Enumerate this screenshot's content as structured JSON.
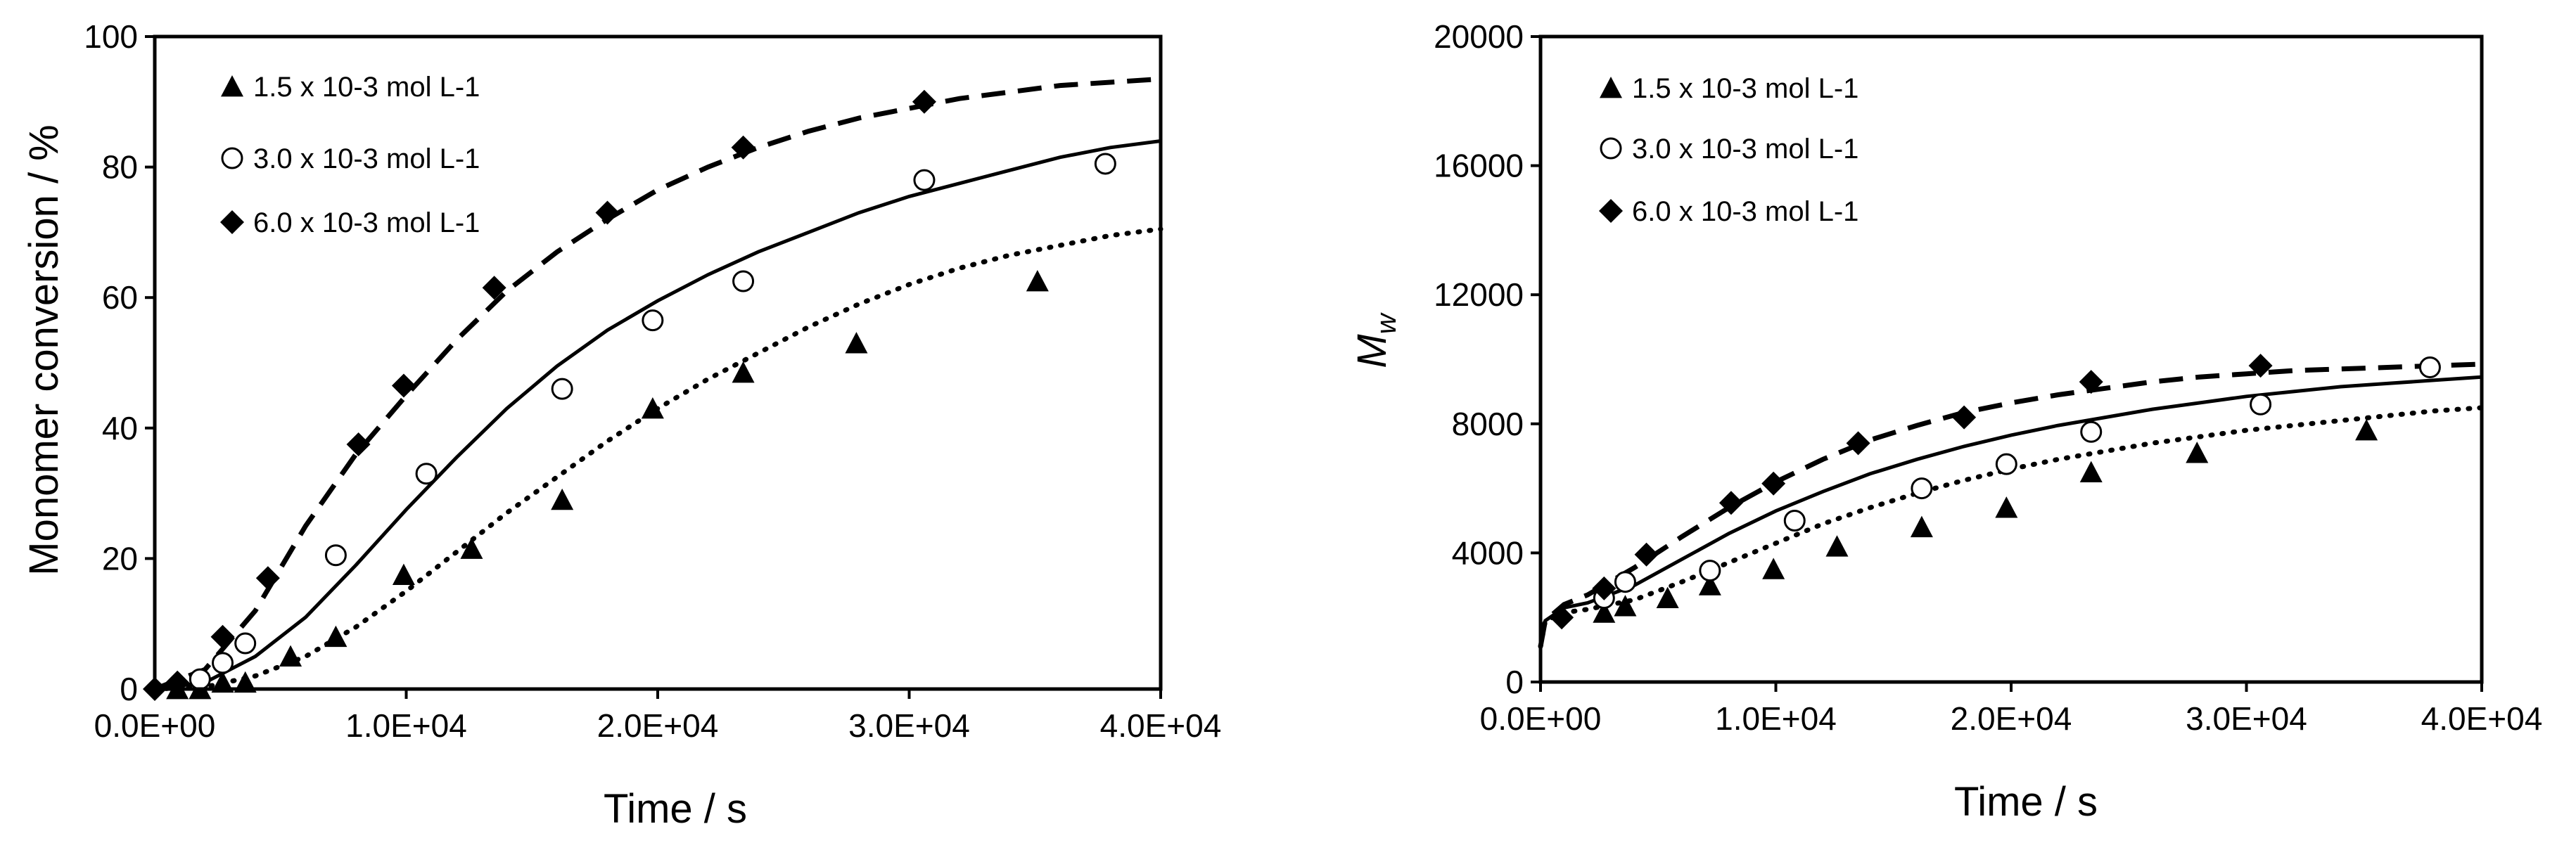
{
  "chart_data": [
    {
      "type": "scatter",
      "title": "",
      "xlabel": "Time / s",
      "ylabel": "Monomer conversion / %",
      "xlim": [
        0,
        40000
      ],
      "ylim": [
        0,
        100
      ],
      "xticks": [
        0,
        10000,
        20000,
        30000,
        40000
      ],
      "xtick_labels": [
        "0.0E+00",
        "1.0E+04",
        "2.0E+04",
        "3.0E+04",
        "4.0E+04"
      ],
      "yticks": [
        0,
        20,
        40,
        60,
        80,
        100
      ],
      "ytick_labels": [
        "0",
        "20",
        "40",
        "60",
        "80",
        "100"
      ],
      "grid": false,
      "legend_position": "top-left",
      "series": [
        {
          "name": "1.5 x 10-3 mol L-1",
          "marker": "triangle",
          "line_style": "dotted",
          "points": [
            [
              900,
              0
            ],
            [
              1800,
              0
            ],
            [
              2700,
              1
            ],
            [
              3600,
              1
            ],
            [
              5400,
              5
            ],
            [
              7200,
              8
            ],
            [
              9900,
              17.5
            ],
            [
              12600,
              21.5
            ],
            [
              16200,
              29
            ],
            [
              19800,
              43
            ],
            [
              23400,
              48.5
            ],
            [
              27900,
              53
            ],
            [
              35100,
              62.5
            ]
          ],
          "fit": [
            [
              0,
              0
            ],
            [
              2000,
              0.3
            ],
            [
              4000,
              2
            ],
            [
              6000,
              5
            ],
            [
              8000,
              9.5
            ],
            [
              10000,
              15
            ],
            [
              12000,
              21
            ],
            [
              14000,
              27
            ],
            [
              16000,
              32.5
            ],
            [
              18000,
              38
            ],
            [
              20000,
              43
            ],
            [
              22000,
              47.5
            ],
            [
              24000,
              51.5
            ],
            [
              26000,
              55.5
            ],
            [
              28000,
              59
            ],
            [
              30000,
              62
            ],
            [
              32000,
              64.5
            ],
            [
              34000,
              66.5
            ],
            [
              36000,
              68
            ],
            [
              38000,
              69.5
            ],
            [
              40000,
              70.5
            ]
          ]
        },
        {
          "name": "3.0 x 10-3 mol L-1",
          "marker": "open-circle",
          "line_style": "solid",
          "points": [
            [
              1800,
              1.5
            ],
            [
              2700,
              4
            ],
            [
              3600,
              7
            ],
            [
              7200,
              20.5
            ],
            [
              10800,
              33
            ],
            [
              16200,
              46
            ],
            [
              19800,
              56.5
            ],
            [
              23400,
              62.5
            ],
            [
              30600,
              78
            ],
            [
              37800,
              80.5
            ]
          ],
          "fit": [
            [
              0,
              0
            ],
            [
              2000,
              1
            ],
            [
              4000,
              5
            ],
            [
              6000,
              11
            ],
            [
              8000,
              19
            ],
            [
              10000,
              27.5
            ],
            [
              12000,
              35.5
            ],
            [
              14000,
              43
            ],
            [
              16000,
              49.5
            ],
            [
              18000,
              55
            ],
            [
              20000,
              59.5
            ],
            [
              22000,
              63.5
            ],
            [
              24000,
              67
            ],
            [
              26000,
              70
            ],
            [
              28000,
              73
            ],
            [
              30000,
              75.5
            ],
            [
              32000,
              77.5
            ],
            [
              34000,
              79.5
            ],
            [
              36000,
              81.5
            ],
            [
              38000,
              83
            ],
            [
              40000,
              84
            ]
          ]
        },
        {
          "name": "6.0 x 10-3 mol L-1",
          "marker": "diamond",
          "line_style": "dashed",
          "points": [
            [
              0,
              0
            ],
            [
              900,
              1
            ],
            [
              2700,
              8
            ],
            [
              4500,
              17
            ],
            [
              8100,
              37.5
            ],
            [
              9900,
              46.5
            ],
            [
              13500,
              61.5
            ],
            [
              18000,
              73
            ],
            [
              23400,
              83
            ],
            [
              30600,
              90
            ]
          ],
          "fit": [
            [
              0,
              0
            ],
            [
              2000,
              3
            ],
            [
              4000,
              12
            ],
            [
              6000,
              25
            ],
            [
              8000,
              36
            ],
            [
              10000,
              45
            ],
            [
              12000,
              53.5
            ],
            [
              14000,
              61
            ],
            [
              16000,
              67
            ],
            [
              18000,
              72
            ],
            [
              20000,
              76.5
            ],
            [
              22000,
              80
            ],
            [
              24000,
              83
            ],
            [
              26000,
              85.5
            ],
            [
              28000,
              87.5
            ],
            [
              30000,
              89
            ],
            [
              32000,
              90.5
            ],
            [
              34000,
              91.5
            ],
            [
              36000,
              92.5
            ],
            [
              38000,
              93
            ],
            [
              40000,
              93.5
            ]
          ]
        }
      ]
    },
    {
      "type": "scatter",
      "title": "",
      "xlabel": "Time / s",
      "ylabel": "Mw",
      "ylabel_main": "M",
      "ylabel_sub": "w",
      "xlim": [
        0,
        40000
      ],
      "ylim": [
        0,
        20000
      ],
      "xticks": [
        0,
        10000,
        20000,
        30000,
        40000
      ],
      "xtick_labels": [
        "0.0E+00",
        "1.0E+04",
        "2.0E+04",
        "3.0E+04",
        "4.0E+04"
      ],
      "yticks": [
        0,
        4000,
        8000,
        12000,
        16000,
        20000
      ],
      "ytick_labels": [
        "0",
        "4000",
        "8000",
        "12000",
        "16000",
        "20000"
      ],
      "grid": false,
      "legend_position": "top-left",
      "series": [
        {
          "name": "1.5 x 10-3 mol L-1",
          "marker": "triangle",
          "line_style": "dotted",
          "points": [
            [
              2700,
              2150
            ],
            [
              3600,
              2350
            ],
            [
              5400,
              2600
            ],
            [
              7200,
              3000
            ],
            [
              9900,
              3500
            ],
            [
              12600,
              4200
            ],
            [
              16200,
              4800
            ],
            [
              19800,
              5400
            ],
            [
              23400,
              6500
            ],
            [
              27900,
              7100
            ],
            [
              35100,
              7800
            ]
          ],
          "fit": [
            [
              0,
              1100
            ],
            [
              200,
              1900
            ],
            [
              1000,
              2150
            ],
            [
              2000,
              2250
            ],
            [
              4000,
              2550
            ],
            [
              6000,
              3100
            ],
            [
              8000,
              3700
            ],
            [
              10000,
              4300
            ],
            [
              12000,
              4900
            ],
            [
              14000,
              5400
            ],
            [
              16000,
              5850
            ],
            [
              18000,
              6250
            ],
            [
              20000,
              6600
            ],
            [
              22000,
              6900
            ],
            [
              24000,
              7150
            ],
            [
              26000,
              7400
            ],
            [
              28000,
              7600
            ],
            [
              30000,
              7800
            ],
            [
              32000,
              7950
            ],
            [
              34000,
              8100
            ],
            [
              36000,
              8250
            ],
            [
              38000,
              8400
            ],
            [
              40000,
              8500
            ]
          ]
        },
        {
          "name": "3.0 x 10-3 mol L-1",
          "marker": "open-circle",
          "line_style": "solid",
          "points": [
            [
              2700,
              2600
            ],
            [
              3600,
              3100
            ],
            [
              7200,
              3450
            ],
            [
              10800,
              5000
            ],
            [
              16200,
              6000
            ],
            [
              19800,
              6750
            ],
            [
              23400,
              7750
            ],
            [
              30600,
              8600
            ],
            [
              37800,
              9750
            ]
          ],
          "fit": [
            [
              0,
              1100
            ],
            [
              200,
              1900
            ],
            [
              1000,
              2300
            ],
            [
              2000,
              2450
            ],
            [
              4000,
              3000
            ],
            [
              6000,
              3800
            ],
            [
              8000,
              4600
            ],
            [
              10000,
              5300
            ],
            [
              12000,
              5900
            ],
            [
              14000,
              6450
            ],
            [
              16000,
              6900
            ],
            [
              18000,
              7300
            ],
            [
              20000,
              7650
            ],
            [
              22000,
              7950
            ],
            [
              24000,
              8200
            ],
            [
              26000,
              8450
            ],
            [
              28000,
              8650
            ],
            [
              30000,
              8850
            ],
            [
              32000,
              9000
            ],
            [
              34000,
              9150
            ],
            [
              36000,
              9250
            ],
            [
              38000,
              9350
            ],
            [
              40000,
              9450
            ]
          ]
        },
        {
          "name": "6.0 x 10-3 mol L-1",
          "marker": "diamond",
          "line_style": "dashed",
          "points": [
            [
              900,
              2000
            ],
            [
              2700,
              2900
            ],
            [
              4500,
              3950
            ],
            [
              8100,
              5550
            ],
            [
              9900,
              6150
            ],
            [
              13500,
              7400
            ],
            [
              18000,
              8200
            ],
            [
              23400,
              9300
            ],
            [
              30600,
              9800
            ]
          ],
          "fit": [
            [
              0,
              1100
            ],
            [
              200,
              1900
            ],
            [
              1000,
              2400
            ],
            [
              2000,
              2700
            ],
            [
              4000,
              3550
            ],
            [
              6000,
              4500
            ],
            [
              8000,
              5400
            ],
            [
              10000,
              6200
            ],
            [
              12000,
              6900
            ],
            [
              14000,
              7500
            ],
            [
              16000,
              7950
            ],
            [
              18000,
              8350
            ],
            [
              20000,
              8650
            ],
            [
              22000,
              8900
            ],
            [
              24000,
              9100
            ],
            [
              26000,
              9300
            ],
            [
              28000,
              9450
            ],
            [
              30000,
              9550
            ],
            [
              32000,
              9650
            ],
            [
              34000,
              9700
            ],
            [
              36000,
              9750
            ],
            [
              38000,
              9800
            ],
            [
              40000,
              9850
            ]
          ]
        }
      ]
    }
  ]
}
